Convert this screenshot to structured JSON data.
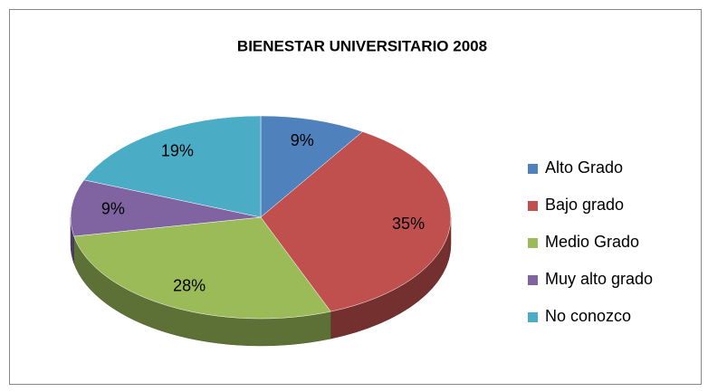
{
  "chart_data": {
    "type": "pie3d",
    "title": "BIENESTAR UNIVERSITARIO 2008",
    "categories": [
      "Alto Grado",
      "Bajo grado",
      "Medio Grado",
      "Muy alto grado",
      "No conozco"
    ],
    "values": [
      9,
      35,
      28,
      9,
      19
    ],
    "value_labels": [
      "9%",
      "35%",
      "28%",
      "9%",
      "19%"
    ],
    "colors": [
      "#4f81bd",
      "#c0504d",
      "#9bbb59",
      "#8064a2",
      "#4bacc6"
    ],
    "legend": "right"
  }
}
